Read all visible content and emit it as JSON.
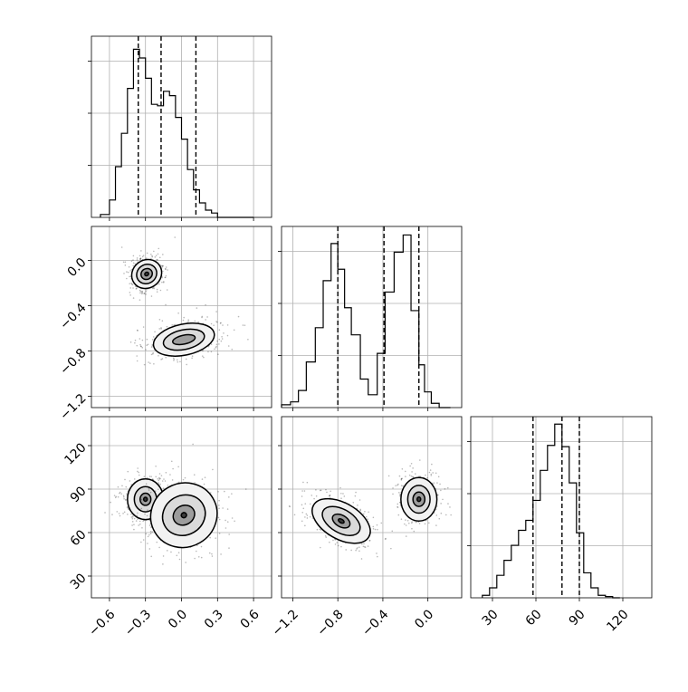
{
  "chart_data": {
    "type": "corner",
    "parameters": [
      {
        "id": "p0",
        "xlim": [
          -0.75,
          0.75
        ],
        "ticks": [
          -0.6,
          -0.3,
          0.0,
          0.3,
          0.6
        ],
        "tick_labels": [
          "−0.6",
          "−0.3",
          "0.0",
          "0.3",
          "0.6"
        ]
      },
      {
        "id": "p1",
        "xlim": [
          -1.3,
          0.3
        ],
        "ticks": [
          -1.2,
          -0.8,
          -0.4,
          0.0
        ],
        "tick_labels": [
          "−1.2",
          "−0.8",
          "−0.4",
          "0.0"
        ]
      },
      {
        "id": "p2",
        "xlim": [
          15,
          140
        ],
        "ticks": [
          30,
          60,
          90,
          120
        ],
        "tick_labels": [
          "30",
          "60",
          "90",
          "120"
        ]
      }
    ],
    "grid": true,
    "histograms": [
      {
        "param": 0,
        "bin_edges": [
          -0.675,
          -0.6,
          -0.55,
          -0.5,
          -0.45,
          -0.4,
          -0.35,
          -0.3,
          -0.25,
          -0.2,
          -0.15,
          -0.1,
          -0.05,
          0.0,
          0.05,
          0.1,
          0.15,
          0.2,
          0.25,
          0.3,
          0.35,
          0.4,
          0.45,
          0.5,
          0.55,
          0.6
        ],
        "counts": [
          0.2,
          1.2,
          3.5,
          5.8,
          8.9,
          11.6,
          11.0,
          9.6,
          7.8,
          7.7,
          8.7,
          8.4,
          6.9,
          5.4,
          3.3,
          1.9,
          1.0,
          0.5,
          0.3,
          0,
          0,
          0,
          0,
          0,
          0
        ],
        "ylim": [
          0,
          12.5
        ],
        "quantiles": [
          -0.36,
          -0.17,
          0.12
        ]
      },
      {
        "param": 1,
        "bin_edges": [
          -1.3,
          -1.22,
          -1.15,
          -1.08,
          -1.0,
          -0.93,
          -0.86,
          -0.8,
          -0.74,
          -0.68,
          -0.6,
          -0.53,
          -0.45,
          -0.38,
          -0.3,
          -0.22,
          -0.15,
          -0.08,
          -0.03,
          0.03,
          0.1,
          0.2
        ],
        "counts": [
          0.2,
          0.4,
          1.2,
          3.2,
          5.6,
          8.9,
          11.5,
          9.7,
          7.0,
          5.1,
          2.0,
          0.9,
          3.8,
          8.1,
          10.9,
          12.1,
          6.8,
          3.0,
          1.1,
          0.3,
          0
        ],
        "ylim": [
          0,
          12.7
        ],
        "quantiles": [
          -0.8,
          -0.39,
          -0.08
        ]
      },
      {
        "param": 2,
        "bin_edges": [
          23,
          28,
          33,
          38,
          43,
          48,
          53,
          58,
          63,
          68,
          73,
          78,
          83,
          88,
          93,
          98,
          103,
          108,
          113,
          118
        ],
        "counts": [
          0.2,
          0.8,
          1.8,
          3.0,
          4.2,
          5.4,
          6.2,
          7.8,
          10.2,
          12.2,
          13.9,
          12.1,
          9.2,
          5.2,
          2.0,
          0.8,
          0.2,
          0.1,
          0
        ],
        "ylim": [
          0,
          14.5
        ],
        "quantiles": [
          58,
          78,
          90
        ]
      }
    ],
    "scatter_panels": [
      {
        "x_param": 0,
        "y_param": 1,
        "modes": [
          {
            "cx": -0.29,
            "cy": -0.12,
            "sx": 0.12,
            "sy": 0.15,
            "rot": -55,
            "levels": [
              [
                0.97,
                0.91
              ],
              [
                0.65,
                0.61
              ],
              [
                0.37,
                0.34
              ],
              [
                0.12,
                0.12
              ]
            ]
          },
          {
            "cx": 0.02,
            "cy": -0.7,
            "sx": 0.28,
            "sy": 0.14,
            "rot": 12,
            "levels": [
              [
                0.92,
                0.98
              ],
              [
                0.62,
                0.62
              ],
              [
                0.34,
                0.28
              ]
            ]
          }
        ]
      },
      {
        "x_param": 0,
        "y_param": 2,
        "modes": [
          {
            "cx": -0.3,
            "cy": 83,
            "sx": 0.15,
            "sy": 14,
            "rot": 0,
            "levels": [
              [
                1.0,
                1.0
              ],
              [
                0.62,
                0.62
              ],
              [
                0.3,
                0.3
              ],
              [
                0.1,
                0.1
              ]
            ]
          },
          {
            "cx": 0.02,
            "cy": 72,
            "sx": 0.28,
            "sy": 22,
            "rot": 30,
            "levels": [
              [
                1.0,
                1.0
              ],
              [
                0.65,
                0.62
              ],
              [
                0.33,
                0.3
              ],
              [
                0.08,
                0.08
              ]
            ]
          }
        ]
      },
      {
        "x_param": 1,
        "y_param": 2,
        "modes": [
          {
            "cx": -0.77,
            "cy": 68,
            "sx": 0.16,
            "sy": 22,
            "rot": 60,
            "levels": [
              [
                1.0,
                1.0
              ],
              [
                0.65,
                0.65
              ],
              [
                0.32,
                0.3
              ],
              [
                0.1,
                0.1
              ]
            ]
          },
          {
            "cx": -0.08,
            "cy": 83,
            "sx": 0.16,
            "sy": 15,
            "rot": 0,
            "levels": [
              [
                1.0,
                1.0
              ],
              [
                0.62,
                0.64
              ],
              [
                0.33,
                0.33
              ],
              [
                0.1,
                0.1
              ]
            ]
          }
        ]
      }
    ]
  }
}
